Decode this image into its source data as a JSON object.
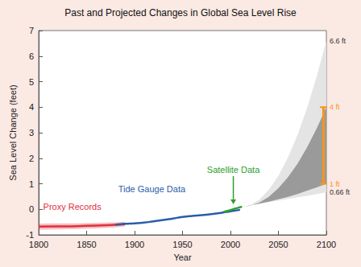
{
  "chart_data": {
    "type": "line",
    "title": "Past and Projected Changes in Global Sea Level Rise",
    "x_label": "Year",
    "y_label": "Sea Level Change (feet)",
    "xlim": [
      1800,
      2100
    ],
    "xticks": [
      1800,
      1850,
      1900,
      1950,
      2000,
      2050,
      2100
    ],
    "ylim": [
      -1,
      7
    ],
    "yticks": [
      -1,
      0,
      1,
      2,
      3,
      4,
      5,
      6,
      7
    ],
    "grid": false,
    "series": [
      {
        "name": "Proxy Records",
        "color": "#e0303a",
        "x": [
          1800,
          1820,
          1840,
          1860,
          1880,
          1890
        ],
        "values": [
          -0.68,
          -0.67,
          -0.66,
          -0.64,
          -0.61,
          -0.58
        ],
        "lower": [
          -0.8,
          -0.79,
          -0.77,
          -0.75,
          -0.71,
          -0.67
        ],
        "upper": [
          -0.56,
          -0.55,
          -0.55,
          -0.53,
          -0.51,
          -0.49
        ]
      },
      {
        "name": "Tide Gauge Data",
        "color": "#2a5caa",
        "x": [
          1880,
          1890,
          1900,
          1910,
          1920,
          1930,
          1940,
          1950,
          1960,
          1970,
          1980,
          1990,
          2000,
          2010
        ],
        "values": [
          -0.6,
          -0.57,
          -0.55,
          -0.52,
          -0.47,
          -0.42,
          -0.36,
          -0.3,
          -0.26,
          -0.23,
          -0.19,
          -0.14,
          -0.08,
          -0.02
        ]
      },
      {
        "name": "Satellite Data",
        "color": "#2ca02c",
        "x": [
          1993,
          1996,
          2000,
          2004,
          2008,
          2012
        ],
        "values": [
          -0.1,
          -0.07,
          -0.03,
          0.02,
          0.06,
          0.1
        ]
      },
      {
        "name": "6.6 ft",
        "color": "#333333",
        "line_style": "none",
        "x": [
          2012,
          2020,
          2030,
          2040,
          2050,
          2060,
          2070,
          2080,
          2090,
          2100
        ],
        "values": [
          0.1,
          0.15,
          0.37,
          0.76,
          1.31,
          2.03,
          2.92,
          3.98,
          5.21,
          6.6
        ]
      },
      {
        "name": "4 ft",
        "color": "#f7941d",
        "line_style": "none",
        "x": [
          2012,
          2020,
          2030,
          2040,
          2050,
          2060,
          2070,
          2080,
          2090,
          2100
        ],
        "values": [
          0.1,
          0.13,
          0.26,
          0.49,
          0.83,
          1.26,
          1.79,
          2.43,
          3.17,
          4.0
        ]
      },
      {
        "name": "1 ft",
        "color": "#f7941d",
        "line_style": "none",
        "x": [
          2012,
          2020,
          2030,
          2040,
          2050,
          2060,
          2070,
          2080,
          2090,
          2100
        ],
        "values": [
          0.1,
          0.15,
          0.22,
          0.3,
          0.39,
          0.49,
          0.6,
          0.73,
          0.86,
          1.0
        ]
      },
      {
        "name": "0.66 ft",
        "color": "#333333",
        "line_style": "none",
        "x": [
          2012,
          2020,
          2030,
          2040,
          2050,
          2060,
          2070,
          2080,
          2090,
          2100
        ],
        "values": [
          0.1,
          0.15,
          0.21,
          0.28,
          0.34,
          0.41,
          0.47,
          0.53,
          0.6,
          0.66
        ]
      },
      {
        "color": "#f7941d",
        "marker": "bar",
        "x": [
          2097,
          2097
        ],
        "values": [
          1,
          4
        ]
      }
    ],
    "bands": [
      {
        "lower": "0.66 ft",
        "upper": "6.6 ft",
        "color": "#e4e4e4"
      },
      {
        "lower": "1 ft",
        "upper": "4 ft",
        "color": "#9a9a9a"
      }
    ],
    "annotations": [
      {
        "text": "Proxy Records",
        "x": 1835,
        "y": 0.1
      },
      {
        "text": "Tide Gauge Data",
        "x": 1918,
        "y": 0.8
      },
      {
        "text": "Satellite Data",
        "x": 2003,
        "y": 1.55,
        "arrow_to": [
          2003,
          0.2
        ]
      }
    ]
  }
}
